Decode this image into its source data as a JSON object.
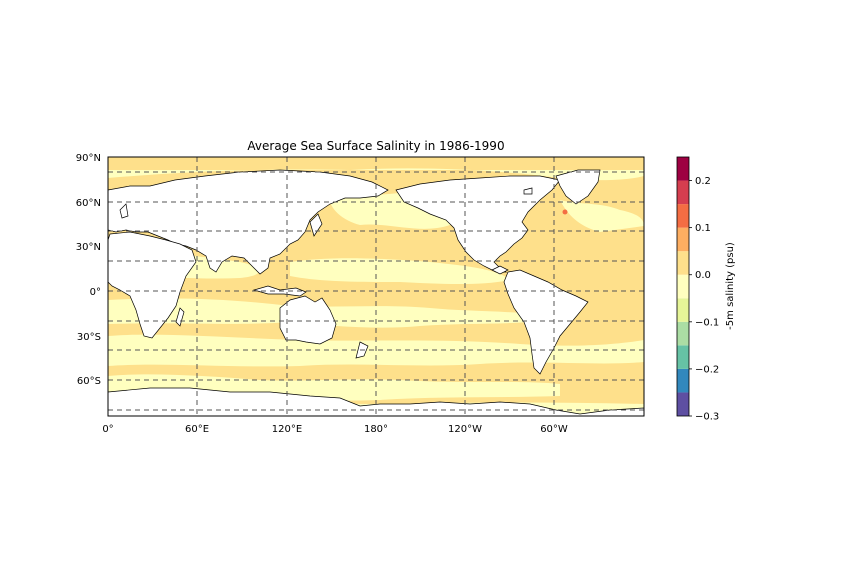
{
  "figure": {
    "title": "Average Sea Surface Salinity in 1986-1990"
  },
  "map": {
    "projection": "PlateCarree",
    "central_longitude": 0,
    "lat_labels": [
      "90°N",
      "60°N",
      "30°N",
      "0°",
      "30°S",
      "60°S"
    ],
    "lon_labels": [
      "0°",
      "60°E",
      "120°E",
      "180°",
      "120°W",
      "60°W"
    ],
    "gridlines": "dashed",
    "land_color": "#ffffff",
    "coastline_color": "#000000"
  },
  "colorbar": {
    "label": "-5m salinity (psu)",
    "colormap": "Spectral_r",
    "levels": [
      -0.3,
      -0.25,
      -0.2,
      -0.15,
      -0.1,
      -0.05,
      0.0,
      0.05,
      0.1,
      0.15,
      0.2,
      0.25
    ],
    "colors": [
      "#5e4fa2",
      "#3288bd",
      "#66c2a5",
      "#abdda4",
      "#e6f598",
      "#ffffbf",
      "#fee08b",
      "#fdae61",
      "#f46d43",
      "#d53e4f",
      "#9e0142"
    ],
    "tick_labels": [
      "0.2",
      "0.1",
      "0.0",
      "−0.1",
      "−0.2",
      "−0.3"
    ]
  }
}
